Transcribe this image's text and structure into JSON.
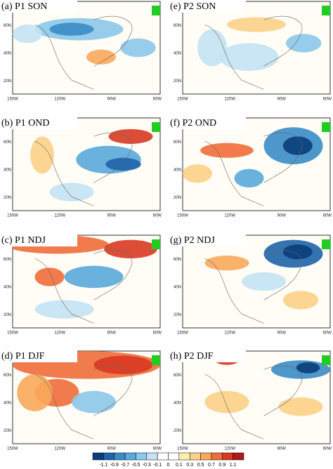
{
  "panels": [
    {
      "title": "(a) P1 SON",
      "lat_labels": [
        "60N",
        "40N",
        "20N"
      ],
      "lon_labels": [
        "150W",
        "120W",
        "90W",
        "60W"
      ]
    },
    {
      "title": "(e) P2 SON",
      "lat_labels": [
        "60N",
        "40N",
        "20N"
      ],
      "lon_labels": [
        "150W",
        "120W",
        "90W",
        "60W"
      ]
    },
    {
      "title": "(b) P1 OND",
      "lat_labels": [
        "60N",
        "40N",
        "20N"
      ],
      "lon_labels": [
        "150W",
        "120W",
        "90W",
        "60W"
      ]
    },
    {
      "title": "(f) P2 OND",
      "lat_labels": [
        "60N",
        "40N",
        "20N"
      ],
      "lon_labels": [
        "150W",
        "120W",
        "90W",
        "60W"
      ]
    },
    {
      "title": "(c) P1 NDJ",
      "lat_labels": [
        "60N",
        "40N",
        "20N"
      ],
      "lon_labels": [
        "150W",
        "120W",
        "90W",
        "60W"
      ]
    },
    {
      "title": "(g) P2 NDJ",
      "lat_labels": [
        "60N",
        "40N",
        "20N"
      ],
      "lon_labels": [
        "150W",
        "120W",
        "90W",
        "60W"
      ]
    },
    {
      "title": "(d) P1 DJF",
      "lat_labels": [
        "60N",
        "40N",
        "20N"
      ],
      "lon_labels": [
        "150W",
        "120W",
        "90W",
        "60W"
      ]
    },
    {
      "title": "(h) P2 DJF",
      "lat_labels": [
        "60N",
        "40N",
        "20N"
      ],
      "lon_labels": [
        "150W",
        "120W",
        "90W",
        "60W"
      ]
    }
  ],
  "colorbar": {
    "labels": [
      "-1.1",
      "-0.9",
      "-0.7",
      "-0.5",
      "-0.3",
      "-0.1",
      "0",
      "0.1",
      "0.3",
      "0.5",
      "0.7",
      "0.9",
      "1.1"
    ],
    "colors": [
      "#0a3d7a",
      "#1f64a8",
      "#3a8cc6",
      "#5aa9dc",
      "#8cc8ea",
      "#c4e2f3",
      "#ffffff",
      "#ffffff",
      "#fdeeb0",
      "#fcd088",
      "#f9a85a",
      "#ef6d3a",
      "#d83a22",
      "#b01818"
    ]
  }
}
